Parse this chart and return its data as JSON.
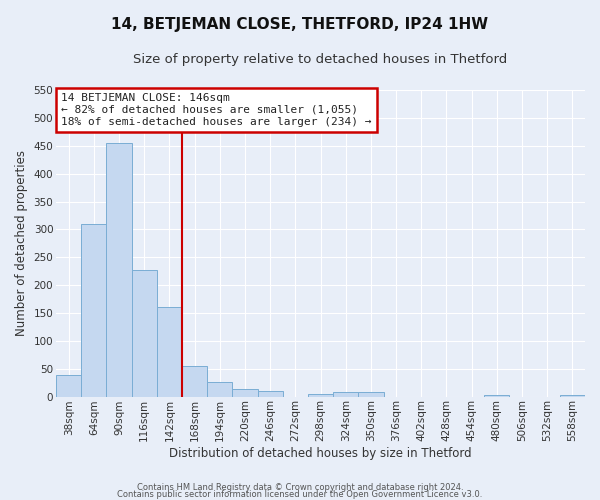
{
  "title": "14, BETJEMAN CLOSE, THETFORD, IP24 1HW",
  "subtitle": "Size of property relative to detached houses in Thetford",
  "xlabel": "Distribution of detached houses by size in Thetford",
  "ylabel": "Number of detached properties",
  "bin_labels": [
    "38sqm",
    "64sqm",
    "90sqm",
    "116sqm",
    "142sqm",
    "168sqm",
    "194sqm",
    "220sqm",
    "246sqm",
    "272sqm",
    "298sqm",
    "324sqm",
    "350sqm",
    "376sqm",
    "402sqm",
    "428sqm",
    "454sqm",
    "480sqm",
    "506sqm",
    "532sqm",
    "558sqm"
  ],
  "bar_values": [
    38,
    310,
    455,
    228,
    160,
    55,
    27,
    13,
    10,
    0,
    5,
    8,
    8,
    0,
    0,
    0,
    0,
    2,
    0,
    0,
    2
  ],
  "bar_color": "#c5d8f0",
  "bar_edge_color": "#7aadd4",
  "red_line_label": "14 BETJEMAN CLOSE: 146sqm",
  "annotation_line1": "← 82% of detached houses are smaller (1,055)",
  "annotation_line2": "18% of semi-detached houses are larger (234) →",
  "annotation_box_color": "#ffffff",
  "annotation_box_edge": "#cc0000",
  "ylim": [
    0,
    550
  ],
  "yticks": [
    0,
    50,
    100,
    150,
    200,
    250,
    300,
    350,
    400,
    450,
    500,
    550
  ],
  "footer1": "Contains HM Land Registry data © Crown copyright and database right 2024.",
  "footer2": "Contains public sector information licensed under the Open Government Licence v3.0.",
  "bg_color": "#e8eef8",
  "plot_bg_color": "#e8eef8",
  "grid_color": "#ffffff",
  "title_fontsize": 11,
  "subtitle_fontsize": 9.5,
  "axis_label_fontsize": 8.5,
  "tick_fontsize": 7.5
}
